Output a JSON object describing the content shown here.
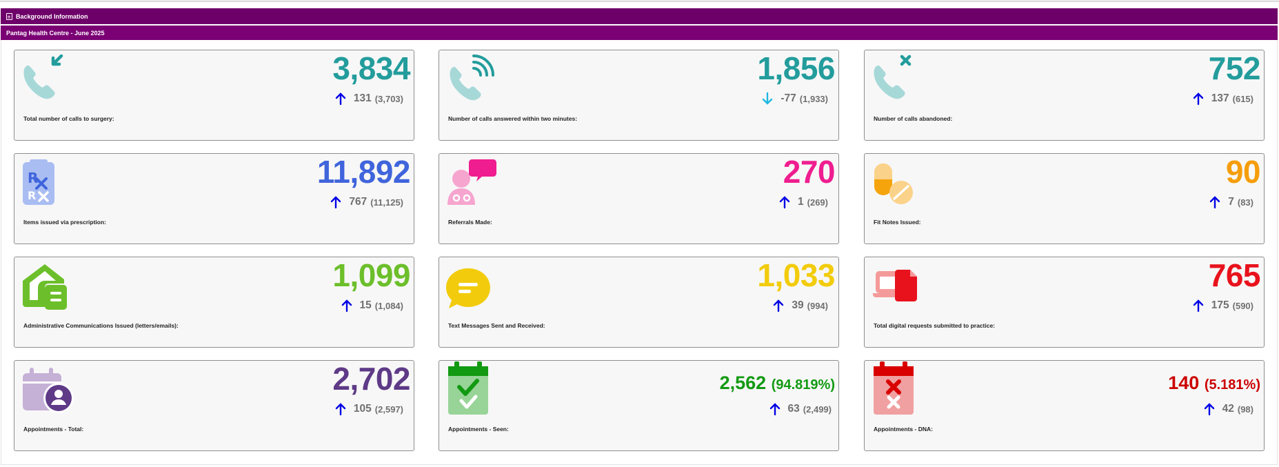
{
  "header": {
    "title": "Background Information",
    "subtitle": "Pantag Health Centre - June 2025"
  },
  "cards": [
    {
      "label": "Total number of calls to surgery:",
      "value": "3,834",
      "change": "131",
      "previous": "(3,703)",
      "direction": "up",
      "color": "#239c9c",
      "icon": "incoming-call-icon"
    },
    {
      "label": "Number of calls answered within two minutes:",
      "value": "1,856",
      "change": "-77",
      "previous": "(1,933)",
      "direction": "down",
      "color": "#239c9c",
      "icon": "call-signal-icon"
    },
    {
      "label": "Number of calls abandoned:",
      "value": "752",
      "change": "137",
      "previous": "(615)",
      "direction": "up",
      "color": "#239c9c",
      "icon": "call-missed-icon"
    },
    {
      "label": "Items issued via prescription:",
      "value": "11,892",
      "change": "767",
      "previous": "(11,125)",
      "direction": "up",
      "color": "#3f64dc",
      "icon": "prescription-icon"
    },
    {
      "label": "Referrals Made:",
      "value": "270",
      "change": "1",
      "previous": "(269)",
      "direction": "up",
      "color": "#ef1d8f",
      "icon": "doctor-chat-icon"
    },
    {
      "label": "Fit Notes Issued:",
      "value": "90",
      "change": "7",
      "previous": "(83)",
      "direction": "up",
      "color": "#f59e0b",
      "icon": "pills-icon"
    },
    {
      "label": "Administrative Communications Issued (letters/emails):",
      "value": "1,099",
      "change": "15",
      "previous": "(1,084)",
      "direction": "up",
      "color": "#6cbf2a",
      "icon": "house-mail-icon"
    },
    {
      "label": "Text Messages Sent and Received:",
      "value": "1,033",
      "change": "39",
      "previous": "(994)",
      "direction": "up",
      "color": "#f2cc0c",
      "icon": "message-bubble-icon"
    },
    {
      "label": "Total digital requests submitted to practice:",
      "value": "765",
      "change": "175",
      "previous": "(590)",
      "direction": "up",
      "color": "#e8121c",
      "icon": "digital-request-icon"
    },
    {
      "label": "Appointments - Total:",
      "value": "2,702",
      "value_pct": "",
      "change": "105",
      "previous": "(2,597)",
      "direction": "up",
      "color": "#5e3a87",
      "icon": "calendar-user-icon"
    },
    {
      "label": "Appointments - Seen:",
      "value": "2,562",
      "value_pct": "(94.819%)",
      "change": "63",
      "previous": "(2,499)",
      "direction": "up",
      "color": "#129a12",
      "icon": "calendar-check-icon"
    },
    {
      "label": "Appointments - DNA:",
      "value": "140",
      "value_pct": "(5.181%)",
      "change": "42",
      "previous": "(98)",
      "direction": "up",
      "color": "#cc0000",
      "icon": "calendar-cross-icon"
    }
  ],
  "colors": {
    "header_bar": "#6e0069",
    "arrow_up": "#0000e6",
    "arrow_down": "#1fb8e0",
    "change_text": "#707070",
    "card_bg": "#f7f7f7"
  }
}
